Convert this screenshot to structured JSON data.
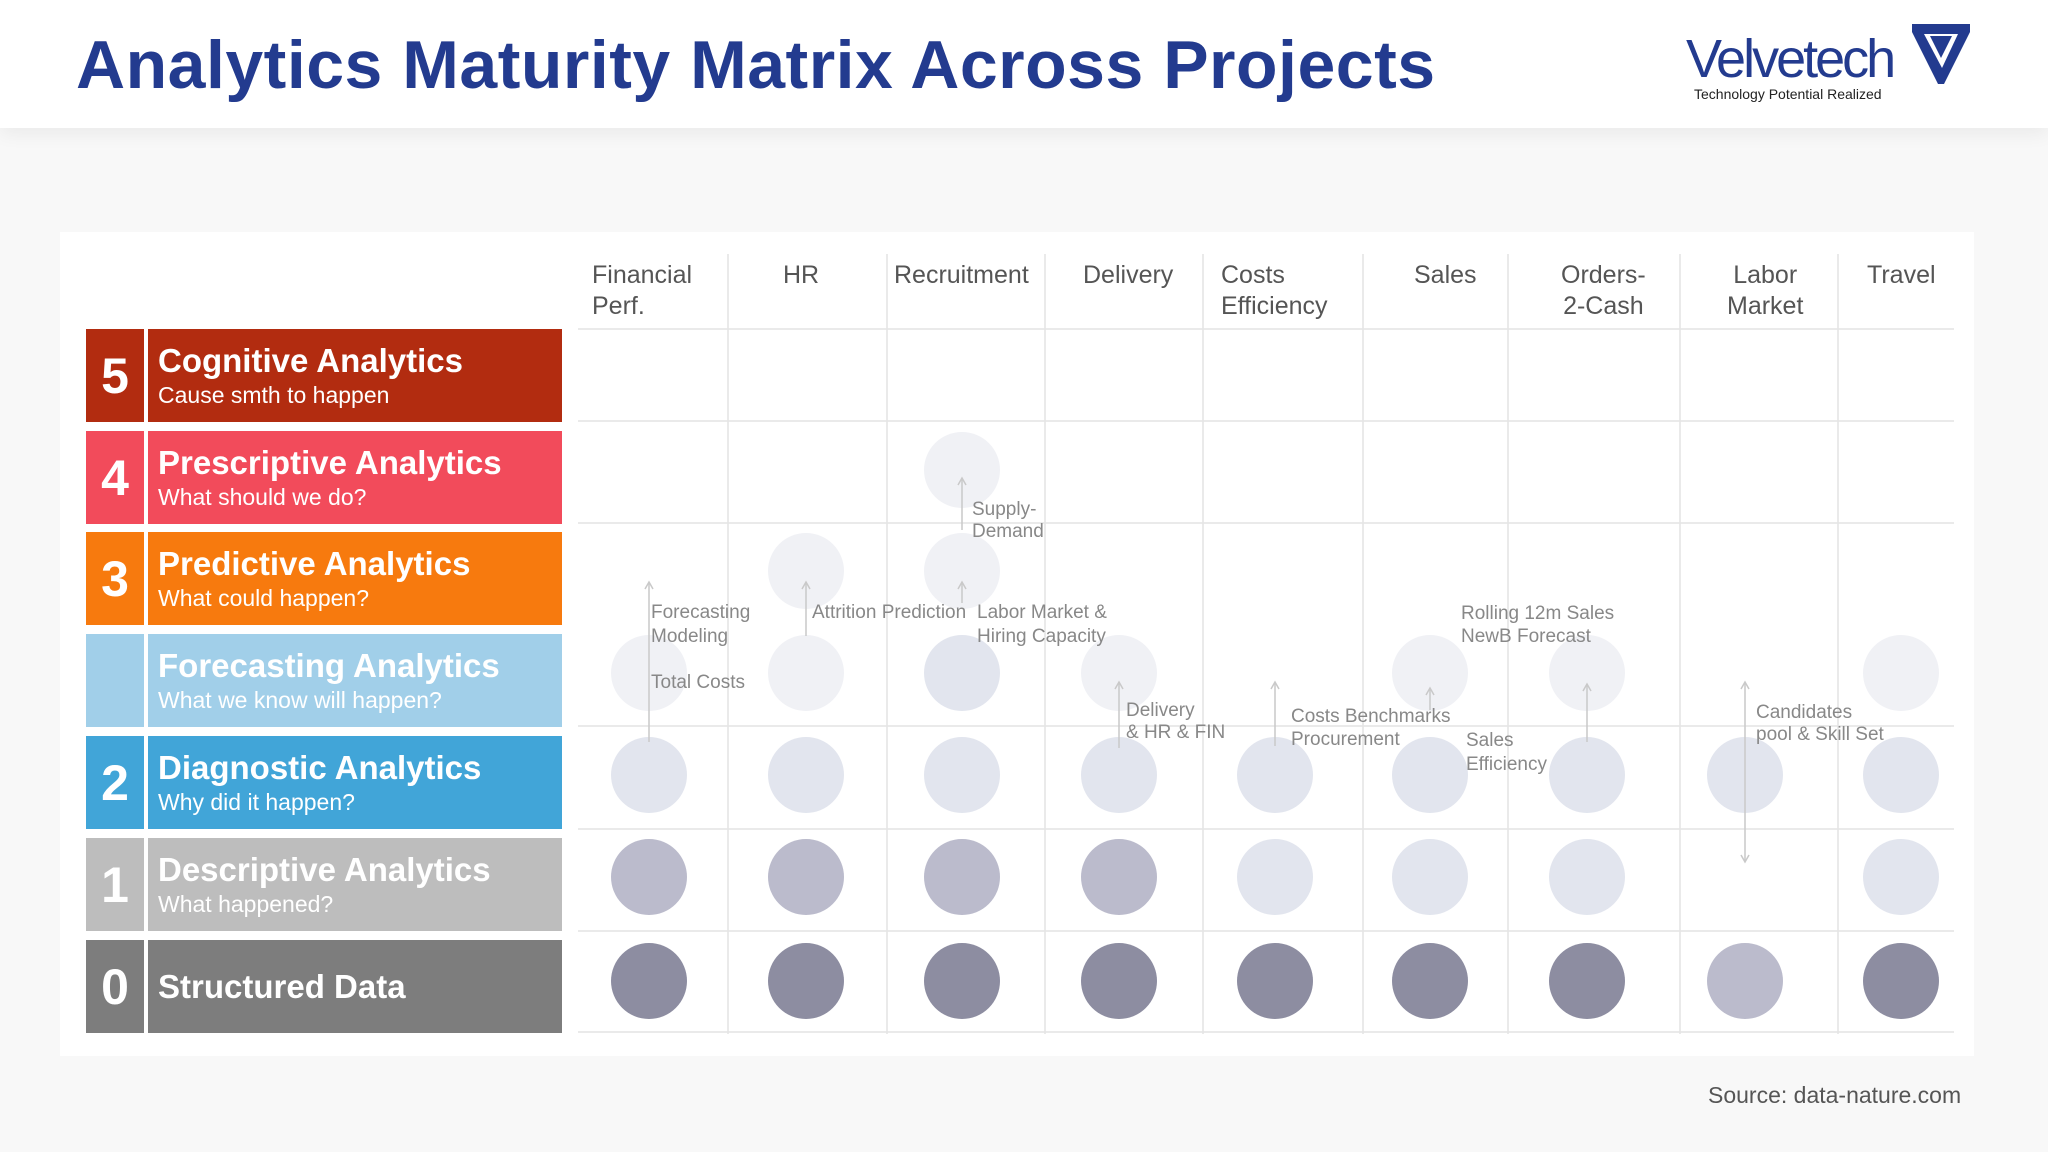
{
  "title": "Analytics Maturity Matrix Across Projects",
  "logo": {
    "wordmark": "Velvetech",
    "tagline": "Technology Potential Realized"
  },
  "source": "Source: data-nature.com",
  "levels": [
    {
      "num": "5",
      "name": "Cognitive Analytics",
      "desc": "Cause smth to happen",
      "color": "#b22c10"
    },
    {
      "num": "4",
      "name": "Prescriptive Analytics",
      "desc": "What should we do?",
      "color": "#f24b5b"
    },
    {
      "num": "3",
      "name": "Predictive Analytics",
      "desc": "What could happen?",
      "color": "#f77a0e"
    },
    {
      "num": "",
      "name": "Forecasting Analytics",
      "desc": "What we know will happen?",
      "color": "#a1cfe9"
    },
    {
      "num": "2",
      "name": "Diagnostic Analytics",
      "desc": "Why did it happen?",
      "color": "#41a5d8"
    },
    {
      "num": "1",
      "name": "Descriptive Analytics",
      "desc": "What happened?",
      "color": "#bdbdbd"
    },
    {
      "num": "0",
      "name": "Structured Data",
      "desc": "",
      "color": "#7d7d7d"
    }
  ],
  "columns": [
    {
      "line1": "Financial",
      "line2": "Perf."
    },
    {
      "line1": "HR",
      "line2": ""
    },
    {
      "line1": "Recruitment",
      "line2": ""
    },
    {
      "line1": "Delivery",
      "line2": ""
    },
    {
      "line1": "Costs",
      "line2": "Efficiency"
    },
    {
      "line1": "Sales",
      "line2": ""
    },
    {
      "line1": "Orders-",
      "line2": "2-Cash"
    },
    {
      "line1": "Labor",
      "line2": "Market"
    },
    {
      "line1": "Travel",
      "line2": ""
    }
  ],
  "dot_colors": {
    "dark": "#8d8da1",
    "medium": "#bbbbcc",
    "light": "#e2e5ee",
    "faint": "#f0f1f5"
  },
  "dots": [
    {
      "col": 0,
      "row": 6,
      "shade": "dark"
    },
    {
      "col": 0,
      "row": 5,
      "shade": "medium"
    },
    {
      "col": 0,
      "row": 4,
      "shade": "light"
    },
    {
      "col": 0,
      "row": 3,
      "shade": "faint"
    },
    {
      "col": 1,
      "row": 6,
      "shade": "dark"
    },
    {
      "col": 1,
      "row": 5,
      "shade": "medium"
    },
    {
      "col": 1,
      "row": 4,
      "shade": "light"
    },
    {
      "col": 1,
      "row": 3,
      "shade": "faint"
    },
    {
      "col": 1,
      "row": 2,
      "shade": "faint"
    },
    {
      "col": 2,
      "row": 6,
      "shade": "dark"
    },
    {
      "col": 2,
      "row": 5,
      "shade": "medium"
    },
    {
      "col": 2,
      "row": 4,
      "shade": "light"
    },
    {
      "col": 2,
      "row": 3,
      "shade": "light"
    },
    {
      "col": 2,
      "row": 2,
      "shade": "faint"
    },
    {
      "col": 2,
      "row": 1,
      "shade": "faint"
    },
    {
      "col": 3,
      "row": 6,
      "shade": "dark"
    },
    {
      "col": 3,
      "row": 5,
      "shade": "medium"
    },
    {
      "col": 3,
      "row": 4,
      "shade": "light"
    },
    {
      "col": 3,
      "row": 3,
      "shade": "faint"
    },
    {
      "col": 4,
      "row": 6,
      "shade": "dark"
    },
    {
      "col": 4,
      "row": 5,
      "shade": "light"
    },
    {
      "col": 4,
      "row": 4,
      "shade": "light"
    },
    {
      "col": 5,
      "row": 6,
      "shade": "dark"
    },
    {
      "col": 5,
      "row": 5,
      "shade": "light"
    },
    {
      "col": 5,
      "row": 4,
      "shade": "light"
    },
    {
      "col": 5,
      "row": 3,
      "shade": "faint"
    },
    {
      "col": 6,
      "row": 6,
      "shade": "dark"
    },
    {
      "col": 6,
      "row": 5,
      "shade": "light"
    },
    {
      "col": 6,
      "row": 4,
      "shade": "light"
    },
    {
      "col": 6,
      "row": 3,
      "shade": "faint"
    },
    {
      "col": 7,
      "row": 6,
      "shade": "medium"
    },
    {
      "col": 7,
      "row": 4,
      "shade": "light"
    },
    {
      "col": 8,
      "row": 6,
      "shade": "dark"
    },
    {
      "col": 8,
      "row": 5,
      "shade": "light"
    },
    {
      "col": 8,
      "row": 4,
      "shade": "light"
    },
    {
      "col": 8,
      "row": 3,
      "shade": "faint"
    }
  ],
  "annotations": [
    {
      "lines": [
        "Forecasting",
        "Modeling"
      ]
    },
    {
      "lines": [
        "Total Costs"
      ]
    },
    {
      "lines": [
        "Attrition Prediction"
      ]
    },
    {
      "lines": [
        "Supply-",
        "Demand"
      ]
    },
    {
      "lines": [
        "Labor Market &",
        "Hiring Capacity"
      ]
    },
    {
      "lines": [
        "Delivery",
        "& HR & FIN"
      ]
    },
    {
      "lines": [
        "Costs Benchmarks",
        "Procurement"
      ]
    },
    {
      "lines": [
        "Sales",
        "Efficiency"
      ]
    },
    {
      "lines": [
        "Rolling 12m Sales",
        "NewB Forecast"
      ]
    },
    {
      "lines": [
        "Candidates",
        "pool & Skill Set"
      ]
    }
  ]
}
